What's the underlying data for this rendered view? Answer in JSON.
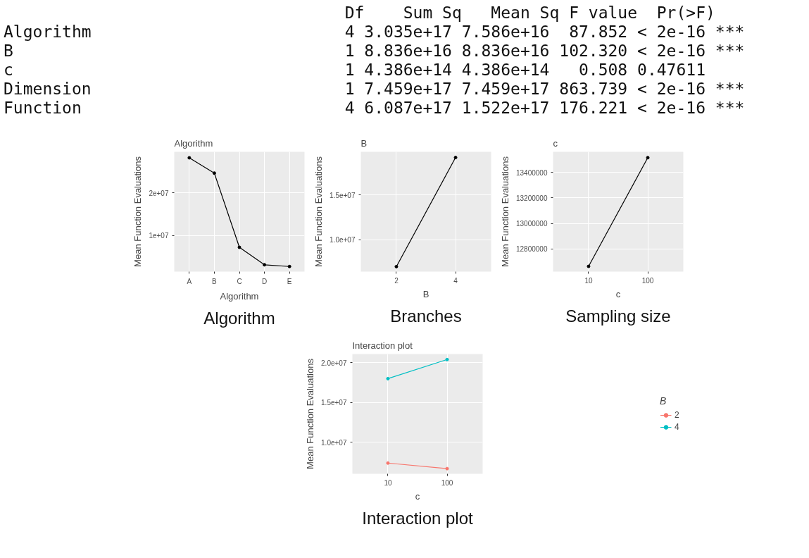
{
  "chart_data": [
    {
      "type": "other",
      "annotations": [
        "                                   Df    Sum Sq   Mean Sq F value  Pr(>F)",
        "Algorithm                          4 3.035e+17 7.586e+16  87.852 < 2e-16 ***",
        "B                                  1 8.836e+16 8.836e+16 102.320 < 2e-16 ***",
        "c                                  1 4.386e+14 4.386e+14   0.508 0.47611",
        "Dimension                          1 7.459e+17 7.459e+17 863.739 < 2e-16 ***",
        "Function                           4 6.087e+17 1.522e+17 176.221 < 2e-16 ***"
      ]
    },
    {
      "type": "line",
      "title": "Algorithm",
      "xlabel": "Algorithm",
      "ylabel": "Mean Function Evaluations",
      "categories": [
        "A",
        "B",
        "C",
        "D",
        "E"
      ],
      "series": [
        {
          "color": "#000000",
          "values": [
            28200000,
            24600000,
            7200000,
            3100000,
            2700000
          ]
        }
      ],
      "ylim": [
        1500000,
        29600000
      ],
      "yticks": [
        {
          "value": 10000000,
          "label": "1e+07"
        },
        {
          "value": 20000000,
          "label": "2e+07"
        }
      ],
      "grid": true,
      "marker": "circle",
      "annotations": [
        "Algorithm"
      ]
    },
    {
      "type": "line",
      "title": "B",
      "xlabel": "B",
      "ylabel": "Mean Function Evaluations",
      "categories": [
        "2",
        "4"
      ],
      "series": [
        {
          "color": "#000000",
          "values": [
            6960000,
            19230000
          ]
        }
      ],
      "ylim": [
        6400000,
        19870000
      ],
      "yticks": [
        {
          "value": 10000000,
          "label": "1.0e+07"
        },
        {
          "value": 15000000,
          "label": "1.5e+07"
        }
      ],
      "grid": true,
      "marker": "circle",
      "annotations": [
        "Branches"
      ]
    },
    {
      "type": "line",
      "title": "c",
      "xlabel": "c",
      "ylabel": "Mean Function Evaluations",
      "categories": [
        "10",
        "100"
      ],
      "series": [
        {
          "color": "#000000",
          "values": [
            12663000,
            13516000
          ]
        }
      ],
      "ylim": [
        12622000,
        13562000
      ],
      "yticks": [
        12800000,
        13000000,
        13200000,
        13400000
      ],
      "grid": true,
      "marker": "circle",
      "annotations": [
        "Sampling size"
      ]
    },
    {
      "type": "line",
      "title": "Interaction plot",
      "xlabel": "c",
      "ylabel": "Mean Function Evaluations",
      "categories": [
        "10",
        "100"
      ],
      "series": [
        {
          "name": "2",
          "color": "#f8766d",
          "values": [
            7400000,
            6700000
          ]
        },
        {
          "name": "4",
          "color": "#00bfc4",
          "values": [
            18000000,
            20400000
          ]
        }
      ],
      "ylim": [
        6050000,
        21090000
      ],
      "yticks": [
        {
          "value": 10000000,
          "label": "1.0e+07"
        },
        {
          "value": 15000000,
          "label": "1.5e+07"
        },
        {
          "value": 20000000,
          "label": "2.0e+07"
        }
      ],
      "grid": true,
      "marker": "circle",
      "legend": "right",
      "legend_title": "B",
      "annotations": [
        "Interaction plot"
      ]
    }
  ]
}
